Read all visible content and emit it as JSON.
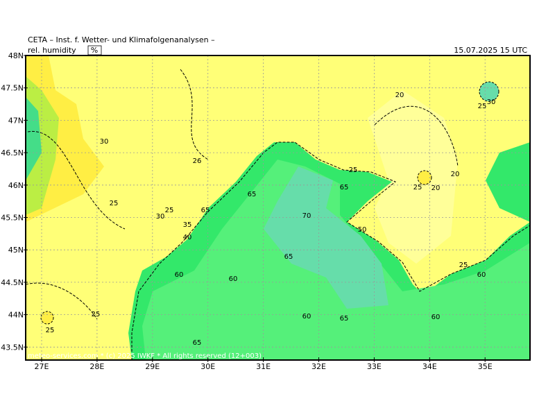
{
  "header": {
    "title": "CETA – Inst. f. Wetter- und Klimafolgenanalysen –",
    "variable": "rel. humidity",
    "unit": "%",
    "valid_time": "15.07.2025 15 UTC"
  },
  "map": {
    "lat_labels": [
      "48N",
      "47.5N",
      "47N",
      "46.5N",
      "46N",
      "45.5N",
      "45N",
      "44.5N",
      "44N",
      "43.5N"
    ],
    "lon_labels": [
      "27E",
      "28E",
      "29E",
      "30E",
      "31E",
      "32E",
      "33E",
      "34E",
      "35E"
    ],
    "contour_labels": [
      "30",
      "26",
      "25",
      "25",
      "30",
      "35",
      "40",
      "65",
      "65",
      "70",
      "65",
      "60",
      "60",
      "60",
      "65",
      "65",
      "60",
      "60",
      "25",
      "25",
      "65",
      "50",
      "20",
      "20",
      "20",
      "25",
      "25",
      "30",
      "25",
      "25"
    ],
    "footer": "meteo-services.com * (c) 2025 IWKF * All rights reserved (12+003)"
  }
}
